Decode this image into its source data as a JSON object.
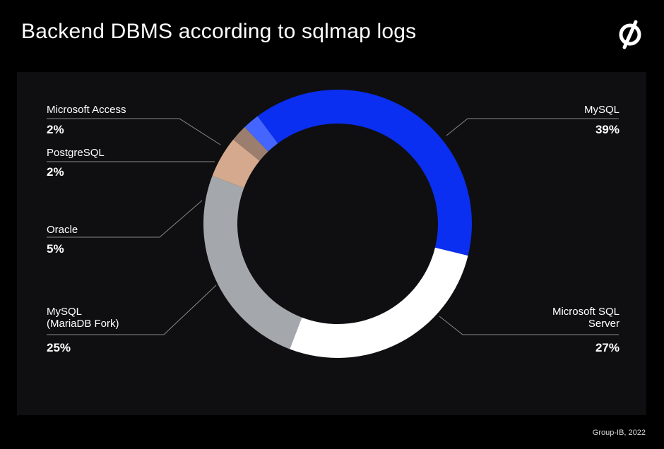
{
  "header": {
    "title": "Backend DBMS according to sqlmap logs"
  },
  "footer": {
    "credit": "Group-IB, 2022"
  },
  "colors": {
    "background": "#000000",
    "panel": "#0f0f11",
    "MySQL": "#0a2ff0",
    "Microsoft SQL Server": "#ffffff",
    "MySQL (MariaDB Fork)": "#a4a8ad",
    "Oracle": "#d4a98d",
    "PostgreSQL": "#9c7e6f",
    "Microsoft Access": "#4466ff"
  },
  "chart_data": {
    "type": "pie",
    "donut": true,
    "title": "Backend DBMS according to sqlmap logs",
    "unit": "%",
    "slices": [
      {
        "label": "MySQL",
        "value": 39,
        "display": "39%",
        "color": "#0a2ff0"
      },
      {
        "label": "Microsoft SQL Server",
        "value": 27,
        "display": "27%",
        "color": "#ffffff"
      },
      {
        "label": "MySQL (MariaDB Fork)",
        "value": 25,
        "display": "25%",
        "color": "#a4a8ad"
      },
      {
        "label": "Oracle",
        "value": 5,
        "display": "5%",
        "color": "#d4a98d"
      },
      {
        "label": "PostgreSQL",
        "value": 2,
        "display": "2%",
        "color": "#9c7e6f"
      },
      {
        "label": "Microsoft Access",
        "value": 2,
        "display": "2%",
        "color": "#4466ff"
      }
    ]
  }
}
